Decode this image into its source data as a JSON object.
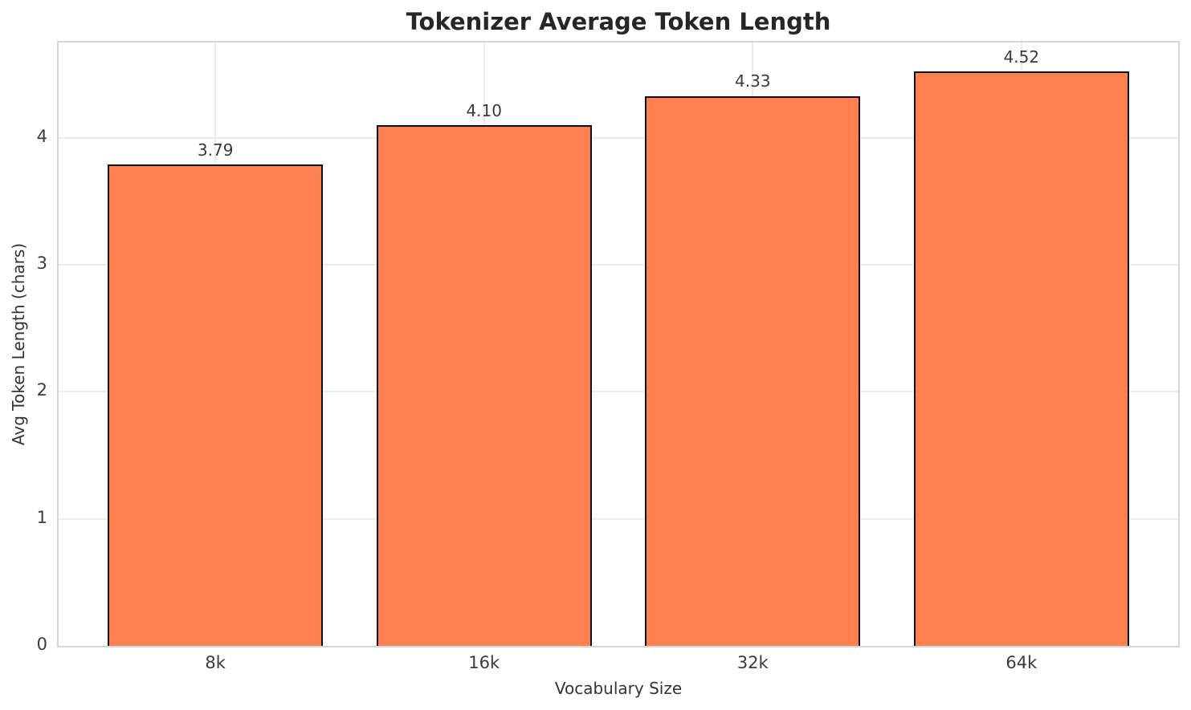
{
  "chart_data": {
    "type": "bar",
    "title": "Tokenizer Average Token Length",
    "xlabel": "Vocabulary Size",
    "ylabel": "Avg Token Length (chars)",
    "categories": [
      "8k",
      "16k",
      "32k",
      "64k"
    ],
    "values": [
      3.79,
      4.1,
      4.33,
      4.52
    ],
    "value_labels": [
      "3.79",
      "4.10",
      "4.33",
      "4.52"
    ],
    "yticks": [
      0,
      1,
      2,
      3,
      4
    ],
    "ytick_labels": [
      "0",
      "1",
      "2",
      "3",
      "4"
    ],
    "ylim": [
      0,
      4.75
    ],
    "grid": true,
    "legend_position": "none",
    "bar_color": "#FF7F50",
    "bar_edge_color": "#0d0d0d",
    "grid_color": "#ebebeb",
    "spine_color": "#d5d5d5",
    "tick_text_color": "#3b3b3b",
    "title_color": "#262626"
  }
}
